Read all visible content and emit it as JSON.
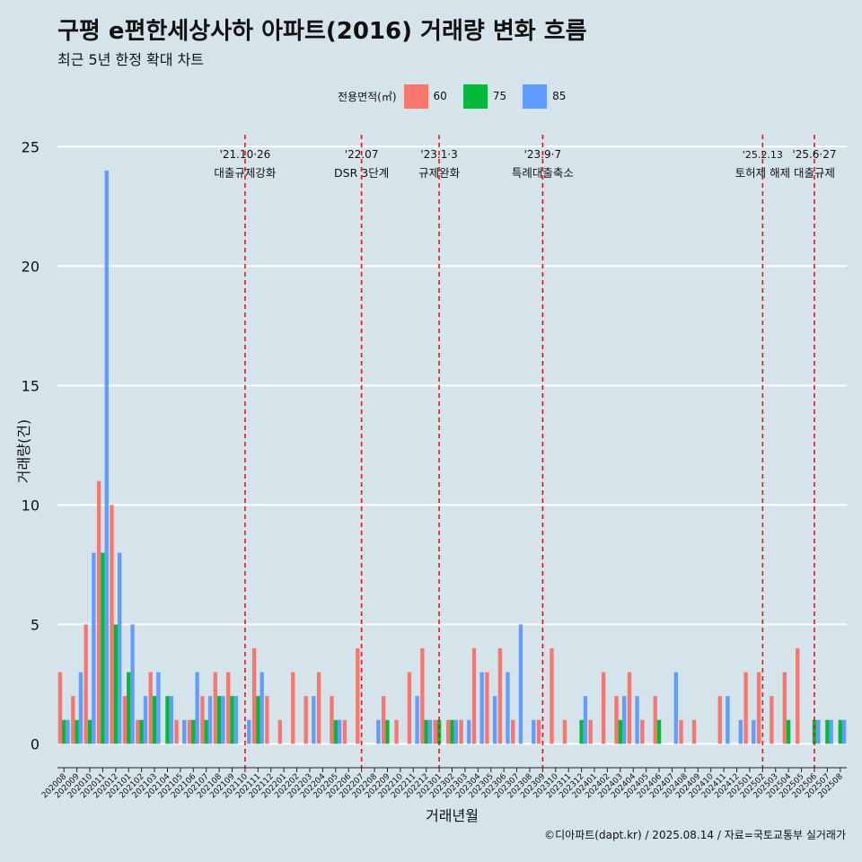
{
  "header": {
    "title": "구평 e편한세상사하 아파트(2016) 거래량 변화 흐름",
    "subtitle": "최근 5년 한정 확대 차트"
  },
  "legend": {
    "title": "전용면적(㎡)",
    "items": [
      {
        "label": "60",
        "color": "#f8766d"
      },
      {
        "label": "75",
        "color": "#00ba38"
      },
      {
        "label": "85",
        "color": "#619cff"
      }
    ]
  },
  "caption": "©디아파트(dapt.kr) / 2025.08.14 / 자료=국토교통부 실거래가",
  "chart_data": {
    "type": "bar",
    "xlabel": "거래년월",
    "ylabel": "거래량(건)",
    "ylim": [
      -1,
      25.5
    ],
    "yticks": [
      0,
      5,
      10,
      15,
      20,
      25
    ],
    "grid": true,
    "legend_position": "top",
    "categories": [
      "202008",
      "202009",
      "202010",
      "202011",
      "202012",
      "202101",
      "202102",
      "202103",
      "202104",
      "202105",
      "202106",
      "202107",
      "202108",
      "202109",
      "202110",
      "202111",
      "202112",
      "202201",
      "202202",
      "202203",
      "202204",
      "202205",
      "202206",
      "202207",
      "202208",
      "202209",
      "202210",
      "202211",
      "202212",
      "202301",
      "202302",
      "202303",
      "202304",
      "202305",
      "202306",
      "202307",
      "202308",
      "202309",
      "202310",
      "202311",
      "202312",
      "202401",
      "202402",
      "202403",
      "202404",
      "202405",
      "202406",
      "202407",
      "202408",
      "202409",
      "202410",
      "202411",
      "202412",
      "202501",
      "202502",
      "202503",
      "202504",
      "202505",
      "202506",
      "202507",
      "202508"
    ],
    "series": [
      {
        "name": "60",
        "color": "#f8766d",
        "values": [
          3,
          2,
          5,
          11,
          10,
          2,
          1,
          3,
          0,
          1,
          1,
          2,
          3,
          3,
          0,
          4,
          2,
          1,
          3,
          2,
          3,
          2,
          1,
          4,
          0,
          2,
          1,
          3,
          4,
          1,
          1,
          1,
          4,
          3,
          4,
          1,
          0,
          1,
          4,
          1,
          0,
          1,
          3,
          2,
          3,
          1,
          2,
          0,
          1,
          1,
          0,
          2,
          0,
          3,
          3,
          2,
          3,
          4,
          0,
          0,
          0
        ]
      },
      {
        "name": "75",
        "color": "#00ba38",
        "values": [
          1,
          1,
          1,
          8,
          5,
          3,
          1,
          2,
          2,
          0,
          1,
          1,
          2,
          2,
          0,
          2,
          0,
          0,
          0,
          0,
          0,
          1,
          0,
          0,
          0,
          1,
          0,
          0,
          1,
          1,
          1,
          0,
          0,
          0,
          0,
          0,
          0,
          0,
          0,
          0,
          1,
          0,
          0,
          1,
          0,
          0,
          1,
          0,
          0,
          0,
          0,
          0,
          0,
          0,
          0,
          0,
          1,
          0,
          1,
          1,
          1
        ]
      },
      {
        "name": "85",
        "color": "#619cff",
        "values": [
          1,
          3,
          8,
          24,
          8,
          5,
          2,
          3,
          2,
          1,
          3,
          2,
          2,
          2,
          1,
          3,
          0,
          0,
          0,
          2,
          0,
          1,
          0,
          0,
          1,
          0,
          0,
          2,
          1,
          0,
          1,
          1,
          3,
          2,
          3,
          5,
          1,
          0,
          0,
          0,
          2,
          0,
          0,
          2,
          2,
          0,
          0,
          3,
          0,
          0,
          0,
          2,
          1,
          1,
          0,
          0,
          0,
          0,
          1,
          1,
          1
        ]
      }
    ],
    "annotations": [
      {
        "x": "202110",
        "label_top": "'21.10·26",
        "label_bottom": "대출규제강화"
      },
      {
        "x": "202207",
        "label_top": "'22.07",
        "label_bottom": "DSR 3단계"
      },
      {
        "x": "202301",
        "label_top": "'23.1·3",
        "label_bottom": "규제완화"
      },
      {
        "x": "202309",
        "label_top": "'23.9·7",
        "label_bottom": "특례대출축소"
      },
      {
        "x": "202502",
        "label_top": "'25.2.13",
        "label_bottom": "토허제 해제"
      },
      {
        "x": "202506",
        "label_top": "'25.6·27",
        "label_bottom": "대출규제"
      }
    ]
  }
}
